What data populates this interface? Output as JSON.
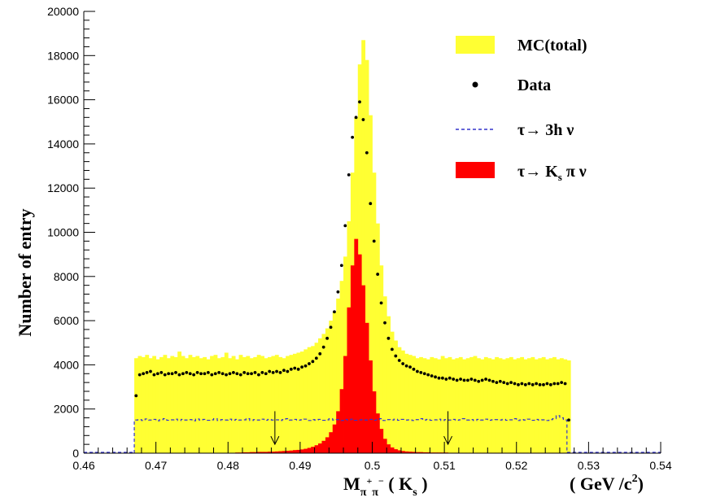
{
  "chart_data": {
    "type": "bar",
    "ylabel": "Number of entry",
    "xlabel": {
      "main": "M",
      "sub": "π",
      "sup1": "+",
      "sub2": "π",
      "sup2": "−",
      "rest": " ( K",
      "rest_sub": "s",
      "rest_end": " )"
    },
    "xunit": {
      "main": "( GeV /c",
      "sup": "2",
      "end": ")"
    },
    "xlim": [
      0.46,
      0.54
    ],
    "ylim": [
      0,
      20000
    ],
    "x_ticks": [
      "0.46",
      "0.47",
      "0.48",
      "0.49",
      "0.5",
      "0.51",
      "0.52",
      "0.53",
      "0.54"
    ],
    "x_tick_values": [
      0.46,
      0.47,
      0.48,
      0.49,
      0.5,
      0.51,
      0.52,
      0.53,
      0.54
    ],
    "y_ticks": [
      "0",
      "2000",
      "4000",
      "6000",
      "8000",
      "10000",
      "12000",
      "14000",
      "16000",
      "18000",
      "20000"
    ],
    "y_tick_values": [
      0,
      2000,
      4000,
      6000,
      8000,
      10000,
      12000,
      14000,
      16000,
      18000,
      20000
    ],
    "bin_start": 0.467,
    "bin_width": 0.0005,
    "legend": {
      "position": "top-right",
      "entries": [
        {
          "label": "MC(total)",
          "style": "fill",
          "color": "#ffff33"
        },
        {
          "label": "Data",
          "style": "marker",
          "color": "#000000"
        },
        {
          "label": "τ→ 3h ν",
          "style": "dashed",
          "color": "#3333cc"
        },
        {
          "label": "τ→ K",
          "sub": "s",
          "label_end": " π ν",
          "style": "fill",
          "color": "#ff0000"
        }
      ]
    },
    "series": [
      {
        "name": "MC(total)",
        "color": "#ffff33",
        "values": [
          4300,
          4400,
          4350,
          4450,
          4300,
          4400,
          4250,
          4350,
          4450,
          4300,
          4400,
          4350,
          4600,
          4400,
          4300,
          4450,
          4350,
          4400,
          4300,
          4350,
          4250,
          4400,
          4450,
          4300,
          4350,
          4550,
          4300,
          4400,
          4250,
          4450,
          4350,
          4400,
          4300,
          4350,
          4450,
          4400,
          4300,
          4350,
          4400,
          4450,
          4350,
          4300,
          4400,
          4450,
          4500,
          4550,
          4600,
          4700,
          4800,
          4850,
          5000,
          5200,
          5400,
          5650,
          6000,
          6400,
          7000,
          7800,
          8900,
          10500,
          12700,
          15200,
          17600,
          18700,
          17800,
          15300,
          12700,
          10400,
          8500,
          7100,
          6200,
          5500,
          5100,
          4800,
          4650,
          4500,
          4450,
          4400,
          4300,
          4350,
          4300,
          4250,
          4350,
          4300,
          4250,
          4400,
          4300,
          4350,
          4250,
          4300,
          4350,
          4250,
          4300,
          4350,
          4400,
          4300,
          4250,
          4350,
          4300,
          4250,
          4350,
          4300,
          4250,
          4300,
          4350,
          4250,
          4300,
          4350,
          4250,
          4300,
          4350,
          4250,
          4300,
          4350,
          4250,
          4300,
          4350,
          4250,
          4300,
          4250,
          4200
        ]
      },
      {
        "name": "τ→ Ks π ν",
        "color": "#ff0000",
        "values": [
          0,
          0,
          0,
          0,
          0,
          0,
          0,
          0,
          0,
          0,
          0,
          0,
          0,
          0,
          0,
          0,
          0,
          0,
          0,
          0,
          0,
          0,
          0,
          0,
          0,
          0,
          0,
          0,
          30,
          30,
          40,
          40,
          50,
          50,
          60,
          60,
          60,
          70,
          70,
          80,
          90,
          100,
          110,
          120,
          140,
          150,
          170,
          200,
          240,
          290,
          360,
          440,
          560,
          720,
          950,
          1300,
          1900,
          2900,
          4400,
          6600,
          8500,
          9700,
          9000,
          7600,
          5900,
          4200,
          2800,
          1800,
          1100,
          650,
          400,
          260,
          180,
          130,
          100,
          80,
          70,
          60,
          50,
          50,
          40,
          40,
          30,
          30,
          30,
          30,
          30,
          20,
          20,
          20,
          20,
          20,
          20,
          20,
          20,
          20,
          20,
          20,
          20,
          20,
          20,
          20,
          20,
          20,
          20,
          20,
          20,
          20,
          20,
          20,
          20,
          20,
          20,
          20,
          20,
          20,
          20,
          20,
          20,
          20,
          20,
          20
        ]
      },
      {
        "name": "τ→ 3h ν",
        "color": "#3333cc",
        "style": "dashed",
        "values": [
          1500,
          1520,
          1480,
          1550,
          1500,
          1530,
          1470,
          1520,
          1560,
          1490,
          1510,
          1540,
          1480,
          1530,
          1500,
          1520,
          1470,
          1550,
          1500,
          1530,
          1490,
          1510,
          1560,
          1480,
          1520,
          1500,
          1540,
          1490,
          1530,
          1500,
          1510,
          1560,
          1480,
          1520,
          1500,
          1540,
          1490,
          1530,
          1500,
          1510,
          1480,
          1520,
          1560,
          1500,
          1530,
          1490,
          1510,
          1540,
          1480,
          1520,
          1500,
          1530,
          1490,
          1510,
          1560,
          1500,
          1520,
          1480,
          1530,
          1500,
          1540,
          1490,
          1510,
          1520,
          1500,
          1530,
          1490,
          1510,
          1560,
          1480,
          1520,
          1500,
          1540,
          1490,
          1530,
          1500,
          1510,
          1480,
          1520,
          1560,
          1500,
          1530,
          1490,
          1510,
          1540,
          1480,
          1520,
          1500,
          1530,
          1490,
          1510,
          1560,
          1500,
          1520,
          1480,
          1530,
          1500,
          1540,
          1490,
          1510,
          1520,
          1500,
          1530,
          1490,
          1510,
          1560,
          1480,
          1520,
          1500,
          1540,
          1490,
          1530,
          1500,
          1510,
          1480,
          1520,
          1560,
          1700,
          1600,
          1500
        ]
      },
      {
        "name": "Data",
        "color": "#000000",
        "style": "marker",
        "values": [
          2600,
          3550,
          3600,
          3650,
          3700,
          3550,
          3600,
          3650,
          3550,
          3600,
          3600,
          3650,
          3550,
          3600,
          3650,
          3600,
          3550,
          3650,
          3600,
          3600,
          3650,
          3550,
          3600,
          3650,
          3600,
          3550,
          3600,
          3650,
          3600,
          3550,
          3650,
          3600,
          3600,
          3650,
          3550,
          3650,
          3600,
          3700,
          3650,
          3700,
          3650,
          3750,
          3700,
          3800,
          3850,
          3800,
          3900,
          3950,
          4050,
          4150,
          4300,
          4500,
          4800,
          5200,
          5700,
          6400,
          7300,
          8500,
          10300,
          12600,
          14300,
          15200,
          15900,
          15100,
          13600,
          11300,
          9600,
          8100,
          6800,
          5900,
          5200,
          4700,
          4400,
          4200,
          4050,
          3950,
          3900,
          3800,
          3700,
          3650,
          3600,
          3550,
          3500,
          3450,
          3400,
          3400,
          3350,
          3400,
          3350,
          3300,
          3350,
          3300,
          3300,
          3350,
          3300,
          3250,
          3300,
          3350,
          3300,
          3250,
          3200,
          3250,
          3200,
          3150,
          3200,
          3150,
          3100,
          3150,
          3100,
          3150,
          3100,
          3150,
          3100,
          3100,
          3150,
          3100,
          3150,
          3150,
          3200,
          3150,
          1500
        ]
      }
    ],
    "annotations": [
      {
        "type": "arrow-down",
        "x": 0.4865,
        "y_from": 1900,
        "y_to": 400
      },
      {
        "type": "arrow-down",
        "x": 0.5105,
        "y_from": 1900,
        "y_to": 400
      }
    ],
    "grid": false
  }
}
